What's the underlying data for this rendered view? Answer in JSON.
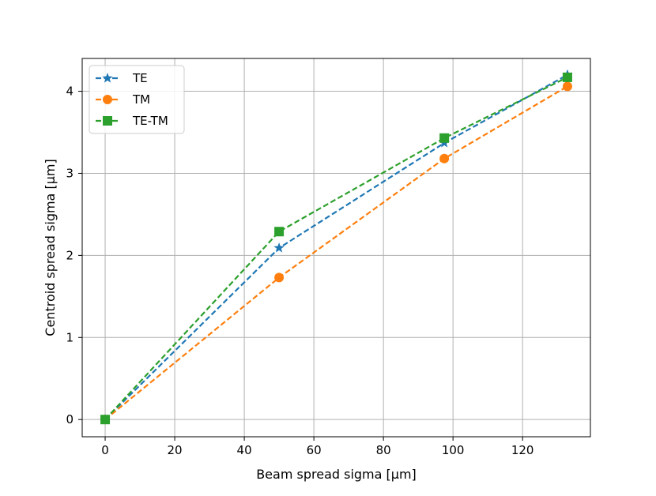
{
  "chart_data": {
    "type": "line",
    "xlabel": "Beam spread sigma [μm]",
    "ylabel": "Centroid spread sigma [μm]",
    "xlim": [
      -6.6,
      139.5
    ],
    "ylim": [
      -0.21,
      4.4
    ],
    "xticks": [
      0,
      20,
      40,
      60,
      80,
      100,
      120
    ],
    "yticks": [
      0,
      1,
      2,
      3,
      4
    ],
    "grid": true,
    "legend_position": "upper-left",
    "series": [
      {
        "name": "TE",
        "color": "#1f77b4",
        "marker": "star",
        "linestyle": "dashed",
        "x": [
          0,
          50,
          97.5,
          132.9
        ],
        "y": [
          0,
          2.09,
          3.37,
          4.2
        ]
      },
      {
        "name": "TM",
        "color": "#ff7f0e",
        "marker": "circle",
        "linestyle": "dashed",
        "x": [
          0,
          50,
          97.5,
          132.9
        ],
        "y": [
          0,
          1.73,
          3.18,
          4.06
        ]
      },
      {
        "name": "TE-TM",
        "color": "#2ca02c",
        "marker": "square",
        "linestyle": "dashed",
        "x": [
          0,
          50,
          97.5,
          132.9
        ],
        "y": [
          0,
          2.29,
          3.43,
          4.17
        ]
      }
    ]
  }
}
